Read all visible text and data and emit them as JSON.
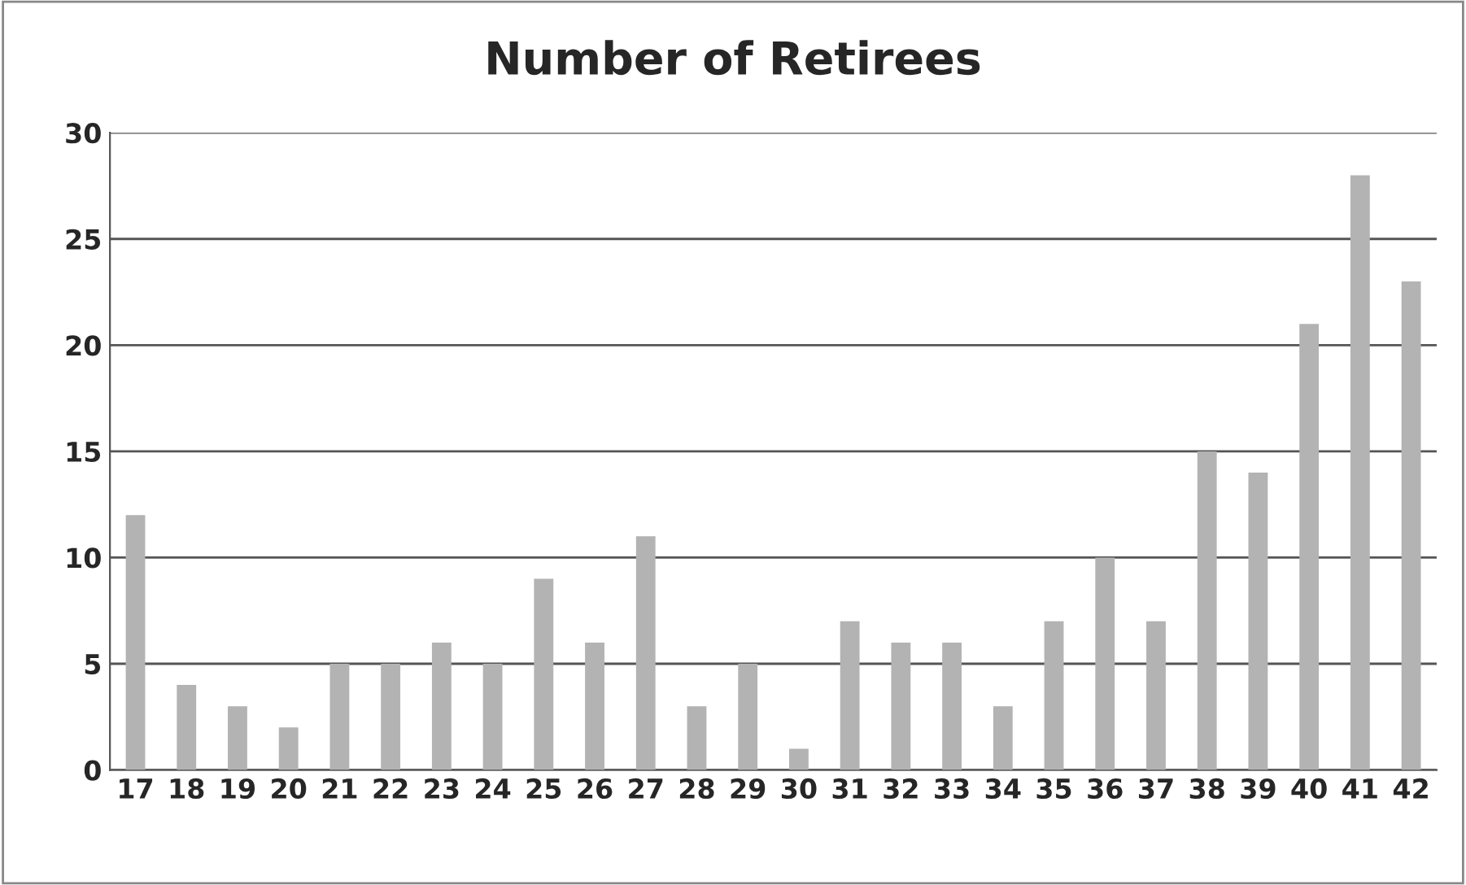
{
  "chart_data": {
    "type": "bar",
    "title": "Number of Retirees",
    "categories": [
      "17",
      "18",
      "19",
      "20",
      "21",
      "22",
      "23",
      "24",
      "25",
      "26",
      "27",
      "28",
      "29",
      "30",
      "31",
      "32",
      "33",
      "34",
      "35",
      "36",
      "37",
      "38",
      "39",
      "40",
      "41",
      "42"
    ],
    "values": [
      12,
      4,
      3,
      2,
      5,
      5,
      6,
      5,
      9,
      6,
      11,
      3,
      5,
      1,
      7,
      6,
      6,
      3,
      7,
      10,
      7,
      15,
      14,
      21,
      28,
      23
    ],
    "color": "#b3b3b3",
    "ylim": [
      0,
      30
    ],
    "yticks": [
      0,
      5,
      10,
      15,
      20,
      25,
      30
    ],
    "grid": "y",
    "legend": false
  }
}
